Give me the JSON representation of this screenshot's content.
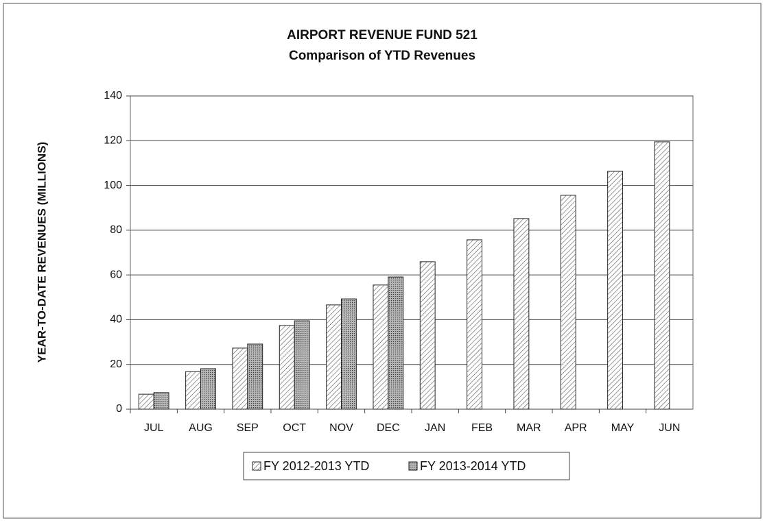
{
  "chart_data": {
    "type": "bar",
    "title": "AIRPORT REVENUE FUND 521",
    "subtitle": "Comparison of YTD Revenues",
    "y_label": "YEAR-TO-DATE REVENUES (MILLIONS)",
    "categories": [
      "JUL",
      "AUG",
      "SEP",
      "OCT",
      "NOV",
      "DEC",
      "JAN",
      "FEB",
      "MAR",
      "APR",
      "MAY",
      "JUN"
    ],
    "series": [
      {
        "name": "FY 2012-2013 YTD",
        "color": "#ffffff",
        "values": [
          6.7,
          16.8,
          27.3,
          37.4,
          46.6,
          55.5,
          65.9,
          75.7,
          85.2,
          95.6,
          106.3,
          119.5
        ]
      },
      {
        "name": "FY 2013-2014 YTD",
        "color": "#b8b8b8",
        "values": [
          7.4,
          18.1,
          29.1,
          39.5,
          49.3,
          59.1,
          null,
          null,
          null,
          null,
          null,
          null
        ]
      }
    ],
    "ylim": [
      0,
      140
    ],
    "yticks": [
      0,
      20,
      40,
      60,
      80,
      100,
      120,
      140
    ],
    "grid": true,
    "legend": "bottom"
  }
}
